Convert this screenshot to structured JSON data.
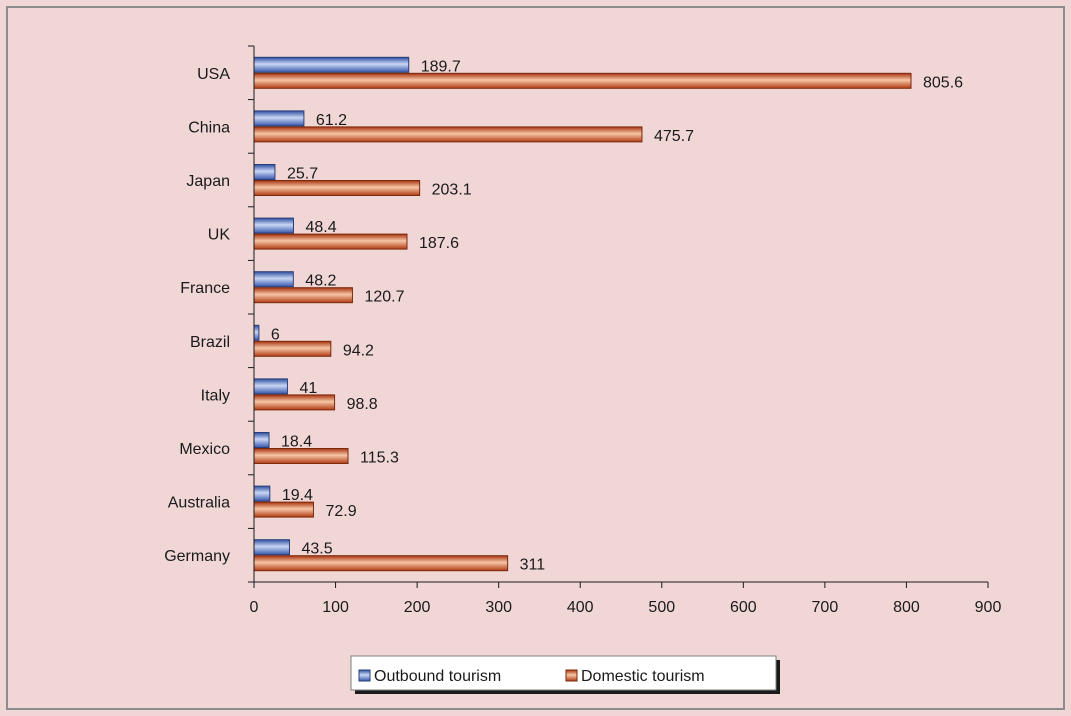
{
  "chart_data": {
    "type": "bar",
    "orientation": "horizontal",
    "categories": [
      "USA",
      "China",
      "Japan",
      "UK",
      "France",
      "Brazil",
      "Italy",
      "Mexico",
      "Australia",
      "Germany"
    ],
    "series": [
      {
        "name": "Outbound tourism",
        "values": [
          189.7,
          61.2,
          25.7,
          48.4,
          48.2,
          6,
          41,
          18.4,
          19.4,
          43.5
        ],
        "labels": [
          "189.7",
          "61.2",
          "25.7",
          "48.4",
          "48.2",
          "6",
          "41",
          "18.4",
          "19.4",
          "43.5"
        ],
        "color": "#4a6fc4"
      },
      {
        "name": "Domestic tourism",
        "values": [
          805.6,
          475.7,
          203.1,
          187.6,
          120.7,
          94.2,
          98.8,
          115.3,
          72.9,
          311
        ],
        "labels": [
          "805.6",
          "475.7",
          "203.1",
          "187.6",
          "120.7",
          "94.2",
          "98.8",
          "115.3",
          "72.9",
          "311"
        ],
        "color": "#c1441c"
      }
    ],
    "xlim": [
      0,
      900
    ],
    "ticks": [
      0,
      100,
      200,
      300,
      400,
      500,
      600,
      700,
      800,
      900
    ],
    "title": "",
    "xlabel": "",
    "ylabel": "",
    "grid": false,
    "legend_position": "bottom"
  }
}
